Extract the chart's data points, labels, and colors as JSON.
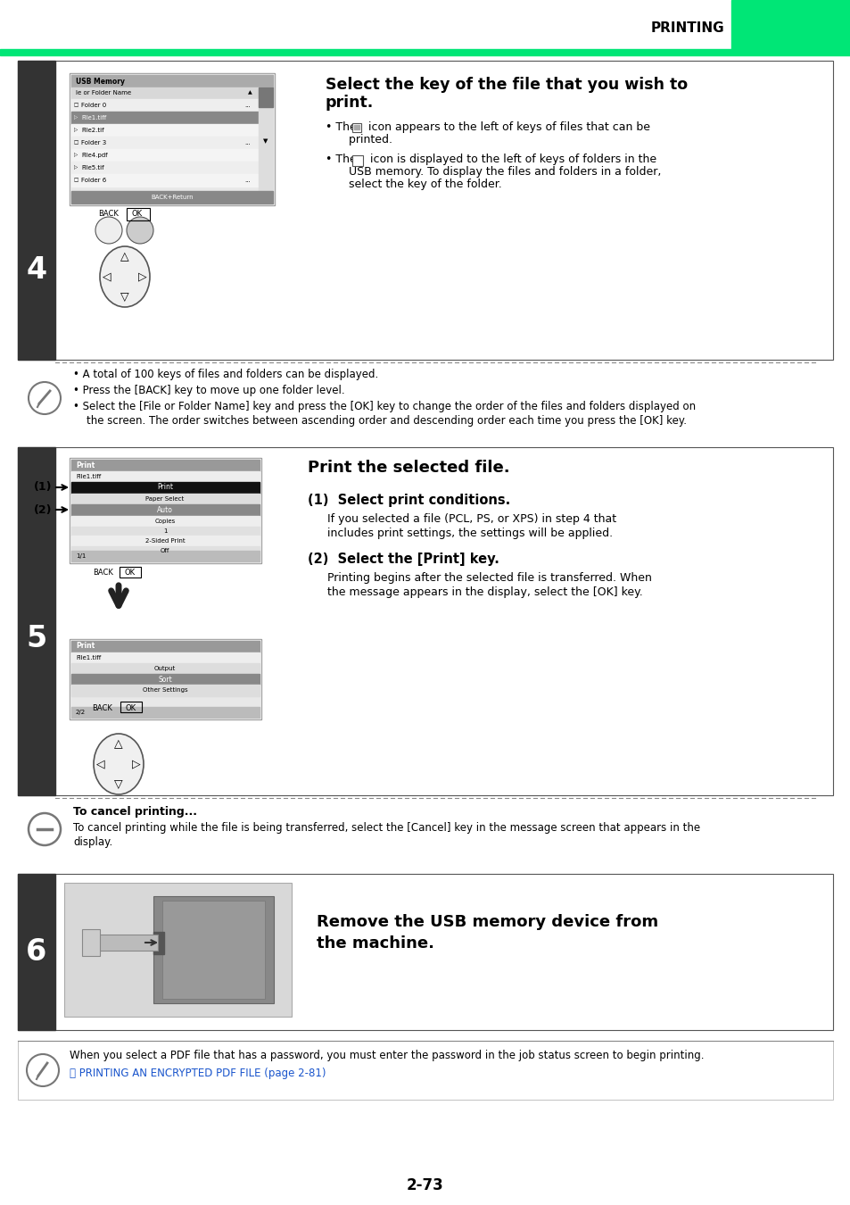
{
  "page_title": "PRINTING",
  "page_number": "2-73",
  "green_color": "#00e676",
  "dark_bar_color": "#333333",
  "bg_color": "#ffffff",
  "step4": {
    "number": "4",
    "title_line1": "Select the key of the file that you wish to",
    "title_line2": "print.",
    "bullet1_pre": "• The ",
    "bullet1_post": " icon appears to the left of keys of files that can be",
    "bullet1_cont": "    printed.",
    "bullet2_pre": "• The ",
    "bullet2_post": " icon is displayed to the left of keys of folders in the",
    "bullet2_cont1": "    USB memory. To display the files and folders in a folder,",
    "bullet2_cont2": "    select the key of the folder.",
    "note1": "• A total of 100 keys of files and folders can be displayed.",
    "note2": "• Press the [BACK] key to move up one folder level.",
    "note3a": "• Select the [File or Folder Name] key and press the [OK] key to change the order of the files and folders displayed on",
    "note3b": "    the screen. The order switches between ascending order and descending order each time you press the [OK] key."
  },
  "step5": {
    "number": "5",
    "title": "Print the selected file.",
    "sub1_title": "(1)  Select print conditions.",
    "sub1_line1": "If you selected a file (PCL, PS, or XPS) in step 4 that",
    "sub1_line2": "includes print settings, the settings will be applied.",
    "sub2_title": "(2)  Select the [Print] key.",
    "sub2_line1": "Printing begins after the selected file is transferred. When",
    "sub2_line2": "the message appears in the display, select the [OK] key.",
    "cancel_bold": "To cancel printing...",
    "cancel_line1": "To cancel printing while the file is being transferred, select the [Cancel] key in the message screen that appears in the",
    "cancel_line2": "display."
  },
  "step6": {
    "number": "6",
    "title_line1": "Remove the USB memory device from",
    "title_line2": "the machine."
  },
  "footer_line1": "When you select a PDF file that has a password, you must enter the password in the job status screen to begin printing.",
  "footer_line2": "PRINTING AN ENCRYPTED PDF FILE (page 2-81)",
  "footer_link_color": "#1a55cc"
}
